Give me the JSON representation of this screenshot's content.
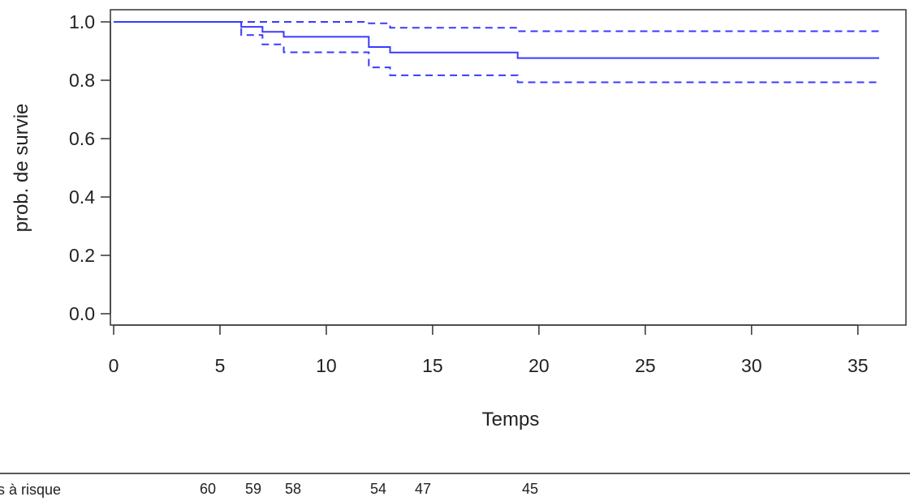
{
  "chart_data": {
    "type": "line",
    "title": "",
    "xlabel": "Temps",
    "ylabel": "prob. de survie",
    "xlim": [
      0,
      36
    ],
    "ylim": [
      0,
      1.0
    ],
    "x_ticks": [
      0,
      5,
      10,
      15,
      20,
      25,
      30,
      35
    ],
    "y_ticks": [
      0.0,
      0.2,
      0.4,
      0.6,
      0.8,
      1.0
    ],
    "x_tick_labels": [
      "0",
      "5",
      "10",
      "15",
      "20",
      "25",
      "30",
      "35"
    ],
    "y_tick_labels": [
      "0.0",
      "0.2",
      "0.4",
      "0.6",
      "0.8",
      "1.0"
    ],
    "grid": false,
    "step": true,
    "series": [
      {
        "role": "estimate",
        "style": "solid",
        "color": "#3a3aff",
        "x": [
          0,
          6,
          7,
          8,
          12,
          13,
          19,
          36
        ],
        "y": [
          1.0,
          0.983,
          0.966,
          0.949,
          0.914,
          0.895,
          0.876,
          0.876
        ]
      },
      {
        "role": "upper",
        "style": "dashed",
        "color": "#3a3aff",
        "x": [
          0,
          6,
          12,
          13,
          19,
          36
        ],
        "y": [
          1.0,
          1.0,
          0.995,
          0.98,
          0.968,
          0.968
        ]
      },
      {
        "role": "lower",
        "style": "dashed",
        "color": "#3a3aff",
        "x": [
          0,
          6,
          7,
          8,
          12,
          13,
          19,
          36
        ],
        "y": [
          1.0,
          0.955,
          0.923,
          0.896,
          0.844,
          0.817,
          0.793,
          0.793
        ]
      }
    ]
  },
  "risk_table": {
    "label": "s à risque",
    "values": [
      "60",
      "59",
      "58",
      "54",
      "47",
      "45"
    ]
  }
}
